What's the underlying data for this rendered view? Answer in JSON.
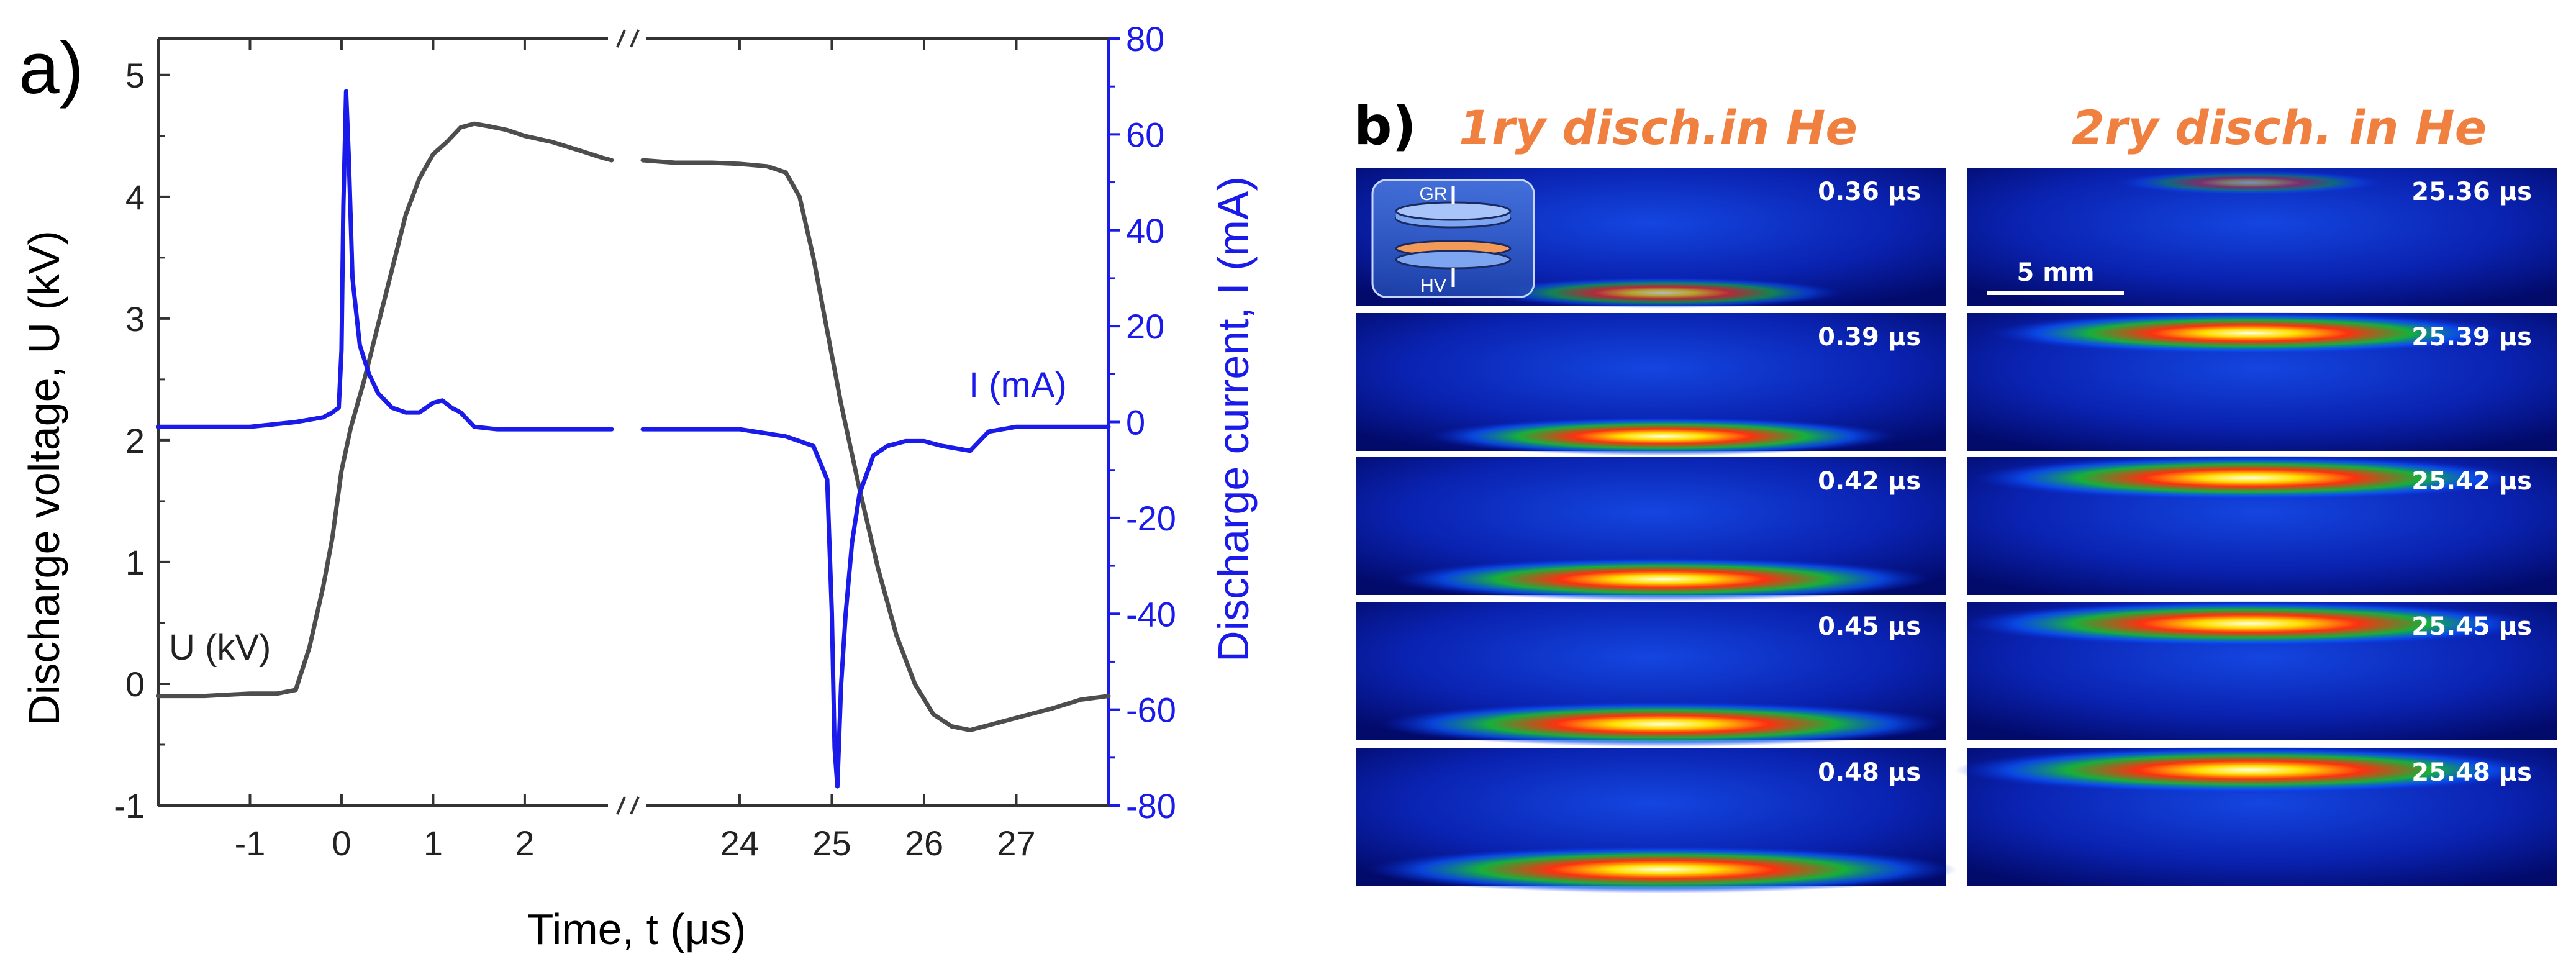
{
  "chart_data": [
    {
      "panel_label": "a)",
      "type": "line",
      "xlabel": "Time, t (μs)",
      "ylabel_left": "Discharge voltage, U (kV)",
      "ylabel_right": "Discharge current, I (mA)",
      "x_axis_break": true,
      "x_segments": [
        [
          -2.0,
          2.95
        ],
        [
          22.95,
          28.0
        ]
      ],
      "x_ticks": [
        -1,
        0,
        1,
        2,
        24,
        25,
        26,
        27
      ],
      "ylim_left": [
        -1,
        5.3
      ],
      "ylim_right": [
        -80,
        80
      ],
      "y_ticks_left": [
        -1,
        0,
        1,
        2,
        3,
        4,
        5
      ],
      "y_ticks_right": [
        -80,
        -60,
        -40,
        -20,
        0,
        20,
        40,
        60,
        80
      ],
      "grid": false,
      "colors": {
        "voltage": "#4d4d4d",
        "current": "#1a1aeb"
      },
      "series": [
        {
          "name": "U (kV)",
          "axis": "left",
          "x": [
            -2.0,
            -1.5,
            -1.0,
            -0.7,
            -0.5,
            -0.35,
            -0.2,
            -0.1,
            0.0,
            0.1,
            0.25,
            0.4,
            0.55,
            0.7,
            0.85,
            1.0,
            1.15,
            1.3,
            1.45,
            1.6,
            1.8,
            2.0,
            2.3,
            2.6,
            2.85,
            2.95,
            22.95,
            23.3,
            23.7,
            24.0,
            24.3,
            24.5,
            24.65,
            24.8,
            24.95,
            25.1,
            25.3,
            25.5,
            25.7,
            25.9,
            26.1,
            26.3,
            26.5,
            26.8,
            27.1,
            27.4,
            27.7,
            28.0
          ],
          "y": [
            -0.1,
            -0.1,
            -0.08,
            -0.08,
            -0.05,
            0.3,
            0.8,
            1.2,
            1.75,
            2.1,
            2.5,
            2.95,
            3.4,
            3.85,
            4.15,
            4.35,
            4.45,
            4.57,
            4.6,
            4.58,
            4.55,
            4.5,
            4.45,
            4.38,
            4.32,
            4.3,
            4.3,
            4.28,
            4.28,
            4.27,
            4.25,
            4.2,
            4.0,
            3.5,
            2.9,
            2.3,
            1.6,
            0.95,
            0.4,
            0.0,
            -0.25,
            -0.35,
            -0.38,
            -0.32,
            -0.26,
            -0.2,
            -0.13,
            -0.1
          ]
        },
        {
          "name": "I (mA)",
          "axis": "right",
          "x": [
            -2.0,
            -1.5,
            -1.0,
            -0.5,
            -0.2,
            -0.1,
            -0.03,
            0.0,
            0.02,
            0.05,
            0.08,
            0.12,
            0.2,
            0.3,
            0.4,
            0.55,
            0.7,
            0.85,
            1.0,
            1.1,
            1.2,
            1.3,
            1.45,
            1.7,
            2.0,
            2.5,
            2.95,
            22.95,
            23.5,
            24.0,
            24.5,
            24.8,
            24.95,
            25.0,
            25.03,
            25.06,
            25.1,
            25.15,
            25.22,
            25.3,
            25.45,
            25.6,
            25.8,
            26.0,
            26.2,
            26.5,
            26.7,
            27.0,
            27.5,
            28.0
          ],
          "y": [
            -1,
            -1,
            -1,
            0,
            1,
            2,
            3,
            15,
            45,
            69,
            55,
            30,
            16,
            10,
            6,
            3,
            2,
            2,
            4,
            4.5,
            3,
            2,
            -1,
            -1.5,
            -1.5,
            -1.5,
            -1.5,
            -1.5,
            -1.5,
            -1.5,
            -3,
            -5,
            -12,
            -40,
            -68,
            -76,
            -55,
            -40,
            -25,
            -15,
            -7,
            -5,
            -4,
            -4,
            -5,
            -6,
            -2,
            -1,
            -1,
            -1
          ]
        }
      ],
      "annotations": [
        "U (kV)",
        "I (mA)"
      ],
      "axis_break_symbol": "//"
    },
    {
      "panel_label": "b)",
      "type": "image_grid",
      "columns": [
        {
          "title": "1ry disch.in He",
          "times": [
            "0.36 μs",
            "0.39 μs",
            "0.42 μs",
            "0.45 μs",
            "0.48 μs"
          ],
          "glow_position": "bottom",
          "glow_intensity": [
            0.35,
            0.65,
            0.85,
            0.92,
            1.0
          ]
        },
        {
          "title": "2ry disch. in He",
          "times": [
            "25.36 μs",
            "25.39 μs",
            "25.42 μs",
            "25.45 μs",
            "25.48 μs"
          ],
          "glow_position": "top",
          "glow_intensity": [
            0.1,
            0.8,
            0.9,
            0.95,
            1.0
          ]
        }
      ],
      "inset_labels": {
        "top_electrode": "GR",
        "bottom_electrode": "HV"
      },
      "scale_bar_label": "5 mm",
      "colors": {
        "title": "#f08040",
        "background": "#00007a",
        "time_label": "#ffffff"
      }
    }
  ]
}
